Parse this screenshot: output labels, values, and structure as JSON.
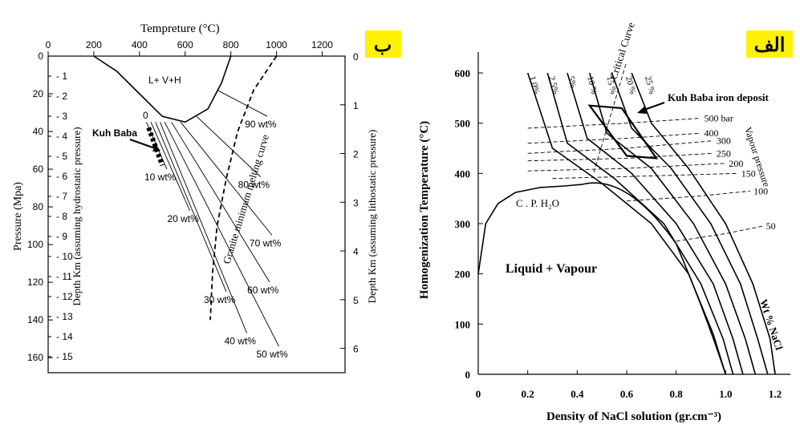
{
  "chart_data": [
    {
      "type": "line",
      "panel_label": "ب",
      "title": "",
      "top_xlabel": "Tempreture (°C)",
      "top_x_ticks": [
        0,
        200,
        400,
        600,
        800,
        1000,
        1200
      ],
      "ylabel": "Pressure (Mpa)",
      "y_ticks": [
        0,
        20,
        40,
        60,
        80,
        100,
        120,
        140,
        160
      ],
      "inner_ylabel": "Depth Km (assuming hydrostatic pressure)",
      "inner_depth_ticks": [
        "1",
        "2",
        "3",
        "4",
        "5",
        "6",
        "7",
        "8",
        "9",
        "10",
        "11",
        "12",
        "13",
        "14",
        "15"
      ],
      "right_ylabel": "Depth Km (assuming lithostatic pressure)",
      "right_depth_ticks": [
        "0",
        "1",
        "2",
        "3",
        "4",
        "5",
        "6"
      ],
      "region_label": "L+ V+H",
      "curve_label": "Granite minimum melting curve",
      "deposit_label": "Kuh Baba",
      "origin_label": "0",
      "isopleth_labels": [
        "10 wt%",
        "20 wt%",
        "30 wt%",
        "40 wt%",
        "50 wt%",
        "60 wt%",
        "70 wt%",
        "80 wt%",
        "90 wt%"
      ],
      "saturation_curve": {
        "x": [
          200,
          300,
          400,
          500,
          600,
          700,
          760,
          800
        ],
        "y": [
          0,
          8,
          20,
          32,
          35,
          28,
          14,
          0
        ]
      },
      "melting_curve": {
        "x": [
          1000,
          900,
          830,
          780,
          740,
          720,
          710
        ],
        "y": [
          0,
          18,
          40,
          65,
          90,
          115,
          140
        ]
      },
      "kuh_baba_range": {
        "x": [
          440,
          500
        ],
        "y": [
          38,
          58
        ]
      },
      "isopleths": [
        {
          "name": "10 wt%",
          "x": [
            430,
            520
          ],
          "y": [
            35,
            60
          ]
        },
        {
          "name": "20 wt%",
          "x": [
            450,
            620
          ],
          "y": [
            35,
            82
          ]
        },
        {
          "name": "30 wt%",
          "x": [
            470,
            780
          ],
          "y": [
            35,
            125
          ]
        },
        {
          "name": "40 wt%",
          "x": [
            490,
            870
          ],
          "y": [
            35,
            147
          ]
        },
        {
          "name": "50 wt%",
          "x": [
            510,
            1010
          ],
          "y": [
            35,
            154
          ]
        },
        {
          "name": "60 wt%",
          "x": [
            540,
            970
          ],
          "y": [
            35,
            120
          ]
        },
        {
          "name": "70 wt%",
          "x": [
            580,
            980
          ],
          "y": [
            35,
            95
          ]
        },
        {
          "name": "80 wt%",
          "x": [
            650,
            930
          ],
          "y": [
            32,
            64
          ]
        },
        {
          "name": "90 wt%",
          "x": [
            740,
            960
          ],
          "y": [
            18,
            32
          ]
        }
      ]
    },
    {
      "type": "line",
      "panel_label": "الف",
      "title": "",
      "xlabel": "Density of NaCl solution (gr.cm⁻³)",
      "ylabel": "Homogenization Temperature (°C)",
      "x_ticks": [
        "0",
        "0.2",
        "0.4",
        "0.6",
        "0.8",
        "1.0",
        "1.2"
      ],
      "y_ticks": [
        "0",
        "100",
        "200",
        "300",
        "400",
        "500",
        "600"
      ],
      "xlim": [
        0,
        1.2
      ],
      "ylim": [
        0,
        600
      ],
      "region_label": "Liquid + Vapour",
      "water_curve_label": "C . P. H₂O",
      "critical_curve_label": "Critical Curve",
      "salinity_axis_label": "Wt % NaCl",
      "vapour_pressure_label": "Vapour pressure",
      "deposit_label": "Kuh Baba iron deposit",
      "salinity_labels": [
        "1.0%",
        "2.5%",
        "5%",
        "10 %",
        "15 %",
        "20 %",
        "25 %"
      ],
      "pressure_labels": [
        "500 bar",
        "400",
        "300",
        "250",
        "200",
        "150",
        "100",
        "50"
      ],
      "deposit_box": {
        "density": [
          0.45,
          0.58,
          0.72,
          0.6
        ],
        "temperature": [
          535,
          530,
          430,
          435
        ]
      },
      "water_curve": {
        "x": [
          0.0,
          0.03,
          0.08,
          0.15,
          0.25,
          0.35,
          0.42
        ],
        "y": [
          200,
          300,
          340,
          362,
          372,
          375,
          378
        ]
      },
      "salinity_curves": [
        {
          "name": "1.0%",
          "x": [
            0.2,
            0.3,
            0.5,
            0.7,
            0.85,
            0.95,
            1.0
          ],
          "y": [
            600,
            450,
            380,
            300,
            200,
            80,
            0
          ]
        },
        {
          "name": "2.5%",
          "x": [
            0.28,
            0.36,
            0.55,
            0.75,
            0.9,
            0.99,
            1.03
          ],
          "y": [
            600,
            460,
            390,
            300,
            180,
            70,
            0
          ]
        },
        {
          "name": "5%",
          "x": [
            0.36,
            0.44,
            0.62,
            0.8,
            0.95,
            1.03,
            1.07
          ],
          "y": [
            600,
            470,
            400,
            300,
            180,
            70,
            0
          ]
        },
        {
          "name": "10 %",
          "x": [
            0.45,
            0.52,
            0.7,
            0.87,
            1.0,
            1.08,
            1.12
          ],
          "y": [
            600,
            480,
            410,
            300,
            180,
            70,
            0
          ]
        },
        {
          "name": "15 %",
          "x": [
            0.54,
            0.62,
            0.78,
            0.94,
            1.06,
            1.13,
            1.17
          ],
          "y": [
            600,
            490,
            410,
            300,
            180,
            70,
            0
          ]
        },
        {
          "name": "20 %",
          "x": [
            0.62,
            0.7,
            0.85,
            1.0,
            1.11,
            1.18,
            1.2
          ],
          "y": [
            600,
            500,
            410,
            300,
            180,
            70,
            0
          ]
        }
      ],
      "isobars": [
        {
          "name": "500 bar",
          "x": [
            0.2,
            0.6,
            0.9
          ],
          "y": [
            490,
            500,
            510
          ]
        },
        {
          "name": "400",
          "x": [
            0.2,
            0.6,
            0.9
          ],
          "y": [
            460,
            470,
            480
          ]
        },
        {
          "name": "300",
          "x": [
            0.2,
            0.6,
            0.95
          ],
          "y": [
            440,
            450,
            465
          ]
        },
        {
          "name": "250",
          "x": [
            0.2,
            0.6,
            0.95
          ],
          "y": [
            425,
            430,
            440
          ]
        },
        {
          "name": "200",
          "x": [
            0.2,
            0.6,
            1.0
          ],
          "y": [
            405,
            410,
            420
          ]
        },
        {
          "name": "150",
          "x": [
            0.3,
            0.7,
            1.05
          ],
          "y": [
            390,
            395,
            400
          ]
        },
        {
          "name": "100",
          "x": [
            0.6,
            0.9,
            1.1
          ],
          "y": [
            345,
            355,
            365
          ]
        },
        {
          "name": "50",
          "x": [
            0.8,
            1.0,
            1.15
          ],
          "y": [
            265,
            280,
            295
          ]
        }
      ]
    }
  ]
}
